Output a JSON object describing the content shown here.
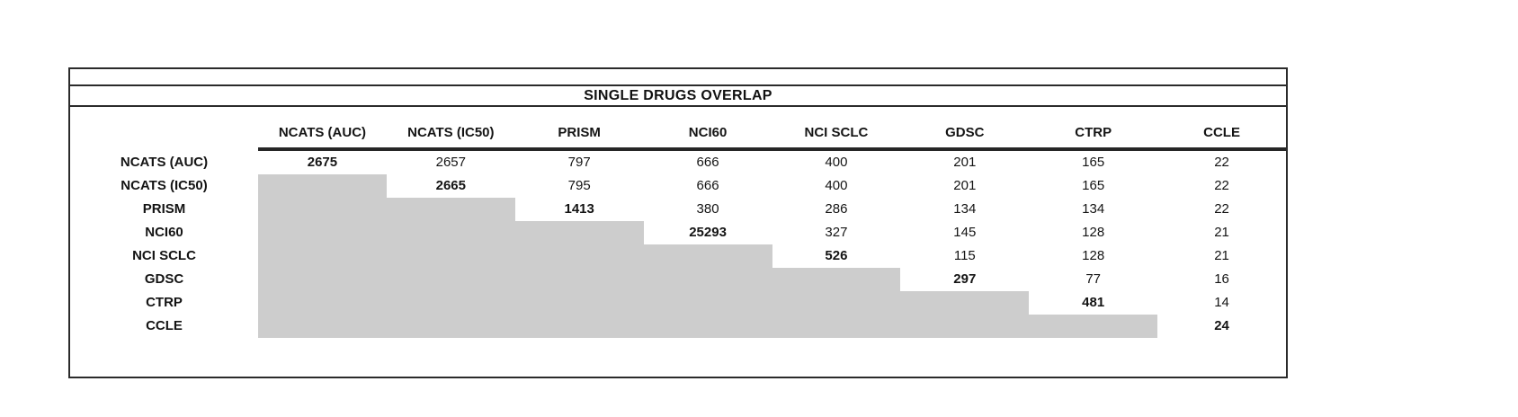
{
  "title": "SINGLE DRUGS OVERLAP",
  "matrix": {
    "columns": [
      "NCATS (AUC)",
      "NCATS (IC50)",
      "PRISM",
      "NCI60",
      "NCI SCLC",
      "GDSC",
      "CTRP",
      "CCLE"
    ],
    "rows": [
      {
        "label": "NCATS (AUC)",
        "values": [
          "2675",
          "2657",
          "797",
          "666",
          "400",
          "201",
          "165",
          "22"
        ]
      },
      {
        "label": "NCATS (IC50)",
        "values": [
          null,
          "2665",
          "795",
          "666",
          "400",
          "201",
          "165",
          "22"
        ]
      },
      {
        "label": "PRISM",
        "values": [
          null,
          null,
          "1413",
          "380",
          "286",
          "134",
          "134",
          "22"
        ]
      },
      {
        "label": "NCI60",
        "values": [
          null,
          null,
          null,
          "25293",
          "327",
          "145",
          "128",
          "21"
        ]
      },
      {
        "label": "NCI SCLC",
        "values": [
          null,
          null,
          null,
          null,
          "526",
          "115",
          "128",
          "21"
        ]
      },
      {
        "label": "GDSC",
        "values": [
          null,
          null,
          null,
          null,
          null,
          "297",
          "77",
          "16"
        ]
      },
      {
        "label": "CTRP",
        "values": [
          null,
          null,
          null,
          null,
          null,
          null,
          "481",
          "14"
        ]
      },
      {
        "label": "CCLE",
        "values": [
          null,
          null,
          null,
          null,
          null,
          null,
          null,
          "24"
        ]
      }
    ]
  },
  "colors": {
    "shaded_cell": "#cdcdcd",
    "border": "#2b2b2b",
    "text": "#141414"
  }
}
